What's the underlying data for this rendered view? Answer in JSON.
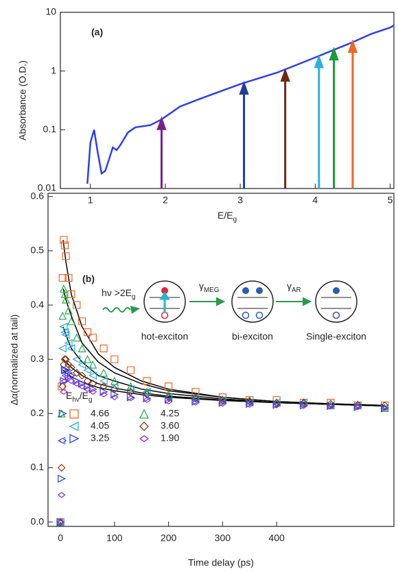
{
  "chart_data": [
    {
      "type": "line",
      "panel_label": "(a)",
      "y_label": "Absorbance (O.D.)",
      "x_label": [
        {
          "text": "E/E"
        },
        {
          "text": "g",
          "sub": true
        }
      ],
      "xlim": [
        0.6,
        5.05
      ],
      "ylim": [
        0.01,
        10
      ],
      "log_y": true,
      "xticks": [
        1,
        2,
        3,
        4,
        5
      ],
      "yticks": [
        0.01,
        0.1,
        1,
        10
      ],
      "color": "#2b3ff2",
      "x": [
        0.96,
        1.0,
        1.05,
        1.1,
        1.15,
        1.2,
        1.3,
        1.35,
        1.4,
        1.5,
        1.6,
        1.8,
        1.95,
        2.2,
        2.5,
        3.0,
        3.5,
        4.0,
        4.25,
        4.5,
        4.75,
        5.0,
        5.05
      ],
      "values": [
        0.012,
        0.06,
        0.1,
        0.04,
        0.018,
        0.02,
        0.05,
        0.045,
        0.055,
        0.09,
        0.11,
        0.12,
        0.15,
        0.25,
        0.35,
        0.6,
        0.95,
        1.7,
        2.3,
        3.1,
        4.3,
        5.5,
        6
      ],
      "arrows": {
        "x": [
          1.95,
          3.05,
          3.6,
          4.05,
          4.25,
          4.5
        ],
        "values": [
          0.15,
          0.6,
          1.0,
          1.7,
          2.3,
          3.1
        ],
        "colors": [
          "#7b1f8c",
          "#1f3f99",
          "#6b2a10",
          "#2ab0e0",
          "#1a9a3a",
          "#f26522"
        ]
      }
    },
    {
      "type": "scatter",
      "panel_label": "(b)",
      "y_label": "Δα(normalized at tail)",
      "x_label": "Time delay (ps)",
      "xlim": [
        -23,
        617
      ],
      "ylim": [
        -0.008,
        0.606
      ],
      "xticks": [
        0,
        100,
        200,
        300,
        400
      ],
      "yticks": [
        {
          "value": 0,
          "label": "0.0"
        },
        0.1,
        0.2,
        0.3,
        0.4,
        0.5,
        0.6
      ],
      "x": [
        0,
        2,
        4,
        6,
        8,
        10,
        15,
        20,
        30,
        40,
        50,
        60,
        80,
        100,
        130,
        160,
        200,
        250,
        300,
        350,
        400,
        450,
        500,
        550,
        600
      ],
      "series": [
        {
          "name": "4.66",
          "color": "#f26522",
          "marker": "square",
          "values": [
            0.0,
            0.25,
            0.45,
            0.52,
            0.51,
            0.49,
            0.45,
            0.42,
            0.4,
            0.37,
            0.35,
            0.34,
            0.32,
            0.3,
            0.28,
            0.26,
            0.25,
            0.24,
            0.23,
            0.225,
            0.225,
            0.22,
            0.22,
            0.215,
            0.215
          ]
        },
        {
          "name": "4.25",
          "color": "#22b14c",
          "marker": "triangle-up",
          "values": [
            0.0,
            0.2,
            0.38,
            0.43,
            0.42,
            0.41,
            0.39,
            0.37,
            0.34,
            0.32,
            0.3,
            0.29,
            0.275,
            0.26,
            0.25,
            0.24,
            0.235,
            0.23,
            0.225,
            0.225,
            0.22,
            0.22,
            0.215,
            0.215,
            0.21
          ]
        },
        {
          "name": "4.05",
          "color": "#2aa8e0",
          "marker": "triangle-left",
          "values": [
            0.0,
            0.15,
            0.32,
            0.36,
            0.35,
            0.345,
            0.33,
            0.32,
            0.3,
            0.29,
            0.28,
            0.27,
            0.26,
            0.25,
            0.245,
            0.24,
            0.23,
            0.23,
            0.225,
            0.22,
            0.22,
            0.22,
            0.215,
            0.215,
            0.21
          ]
        },
        {
          "name": "3.60",
          "color": "#8b3a1a",
          "marker": "diamond",
          "values": [
            0.0,
            0.1,
            0.25,
            0.29,
            0.3,
            0.3,
            0.29,
            0.285,
            0.275,
            0.27,
            0.26,
            0.255,
            0.25,
            0.245,
            0.24,
            0.235,
            0.23,
            0.228,
            0.225,
            0.222,
            0.22,
            0.22,
            0.218,
            0.216,
            0.215
          ]
        },
        {
          "name": "3.25",
          "color": "#2a3fd8",
          "marker": "triangle-right",
          "values": [
            0.0,
            0.08,
            0.2,
            0.26,
            0.28,
            0.28,
            0.275,
            0.27,
            0.26,
            0.255,
            0.25,
            0.245,
            0.24,
            0.235,
            0.23,
            0.228,
            0.225,
            0.222,
            0.22,
            0.218,
            0.216,
            0.215,
            0.214,
            0.212,
            0.21
          ]
        },
        {
          "name": "1.90",
          "color": "#8a2be2",
          "marker": "small-diamond",
          "values": [
            0.0,
            0.05,
            0.15,
            0.24,
            0.26,
            0.27,
            0.265,
            0.26,
            0.255,
            0.25,
            0.245,
            0.24,
            0.235,
            0.23,
            0.228,
            0.225,
            0.222,
            0.22,
            0.218,
            0.216,
            0.215,
            0.214,
            0.213,
            0.212,
            0.21
          ]
        }
      ],
      "fit_lines": {
        "color": "#000000",
        "x": [
          5,
          10,
          20,
          40,
          70,
          100,
          150,
          200,
          300,
          400,
          500,
          600
        ],
        "values": [
          [
            0.52,
            0.48,
            0.42,
            0.36,
            0.31,
            0.285,
            0.26,
            0.245,
            0.23,
            0.222,
            0.218,
            0.215
          ],
          [
            0.43,
            0.41,
            0.38,
            0.33,
            0.295,
            0.275,
            0.255,
            0.242,
            0.23,
            0.222,
            0.218,
            0.215
          ],
          [
            0.36,
            0.345,
            0.32,
            0.295,
            0.27,
            0.26,
            0.245,
            0.237,
            0.227,
            0.22,
            0.217,
            0.214
          ],
          [
            0.3,
            0.295,
            0.285,
            0.27,
            0.255,
            0.247,
            0.238,
            0.232,
            0.225,
            0.22,
            0.217,
            0.214
          ],
          [
            0.28,
            0.275,
            0.268,
            0.258,
            0.248,
            0.242,
            0.235,
            0.23,
            0.224,
            0.22,
            0.217,
            0.214
          ]
        ]
      },
      "legend_title": [
        {
          "text": "E"
        },
        {
          "text": "hν",
          "sub": true
        },
        {
          "text": "/E"
        },
        {
          "text": "g",
          "sub": true
        }
      ],
      "inset": {
        "excitation": [
          {
            "text": "hν >2E"
          },
          {
            "text": "g",
            "sub": true
          }
        ],
        "gamma_meg": [
          {
            "text": "γ"
          },
          {
            "text": "MEG",
            "sub": true
          }
        ],
        "gamma_ar": [
          {
            "text": "γ"
          },
          {
            "text": "AR",
            "sub": true
          }
        ],
        "states": [
          "hot-exciton",
          "bi-exciton",
          "Single-exciton"
        ]
      }
    }
  ]
}
